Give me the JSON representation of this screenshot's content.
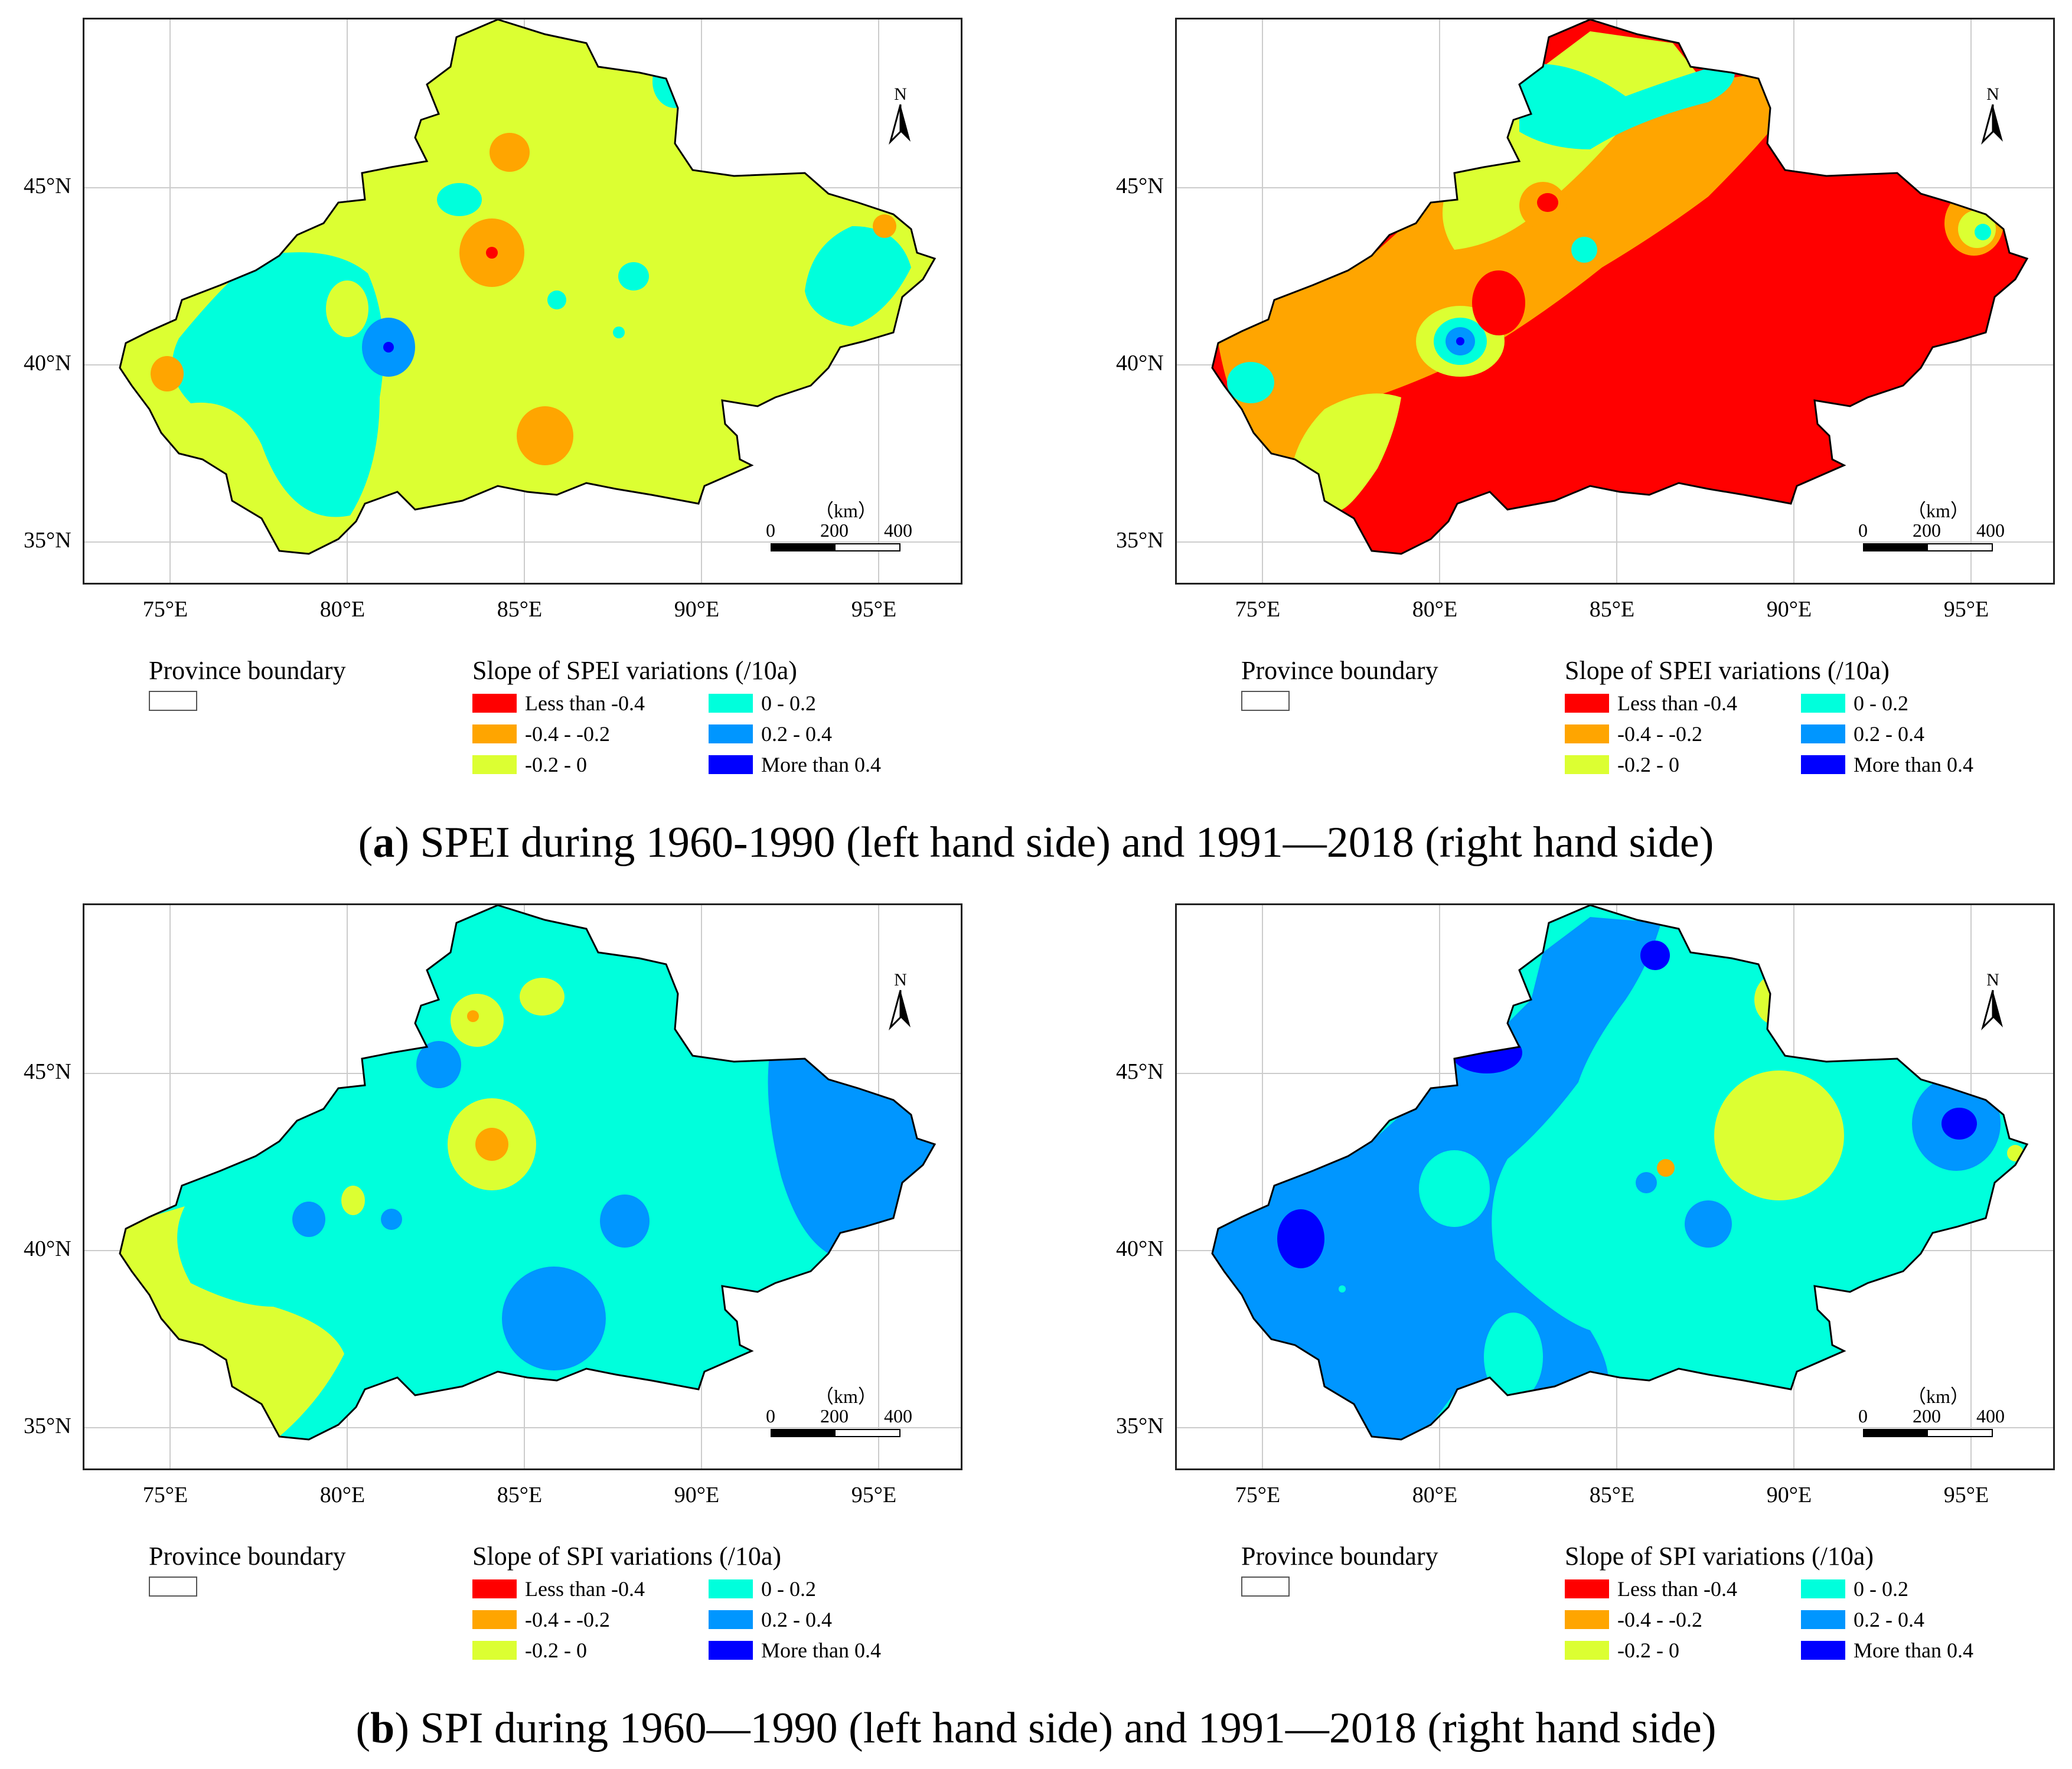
{
  "legend_classes": [
    {
      "label": "Less than -0.4",
      "color": "#ff0000"
    },
    {
      "label": "-0.4 - -0.2",
      "color": "#ffa500"
    },
    {
      "label": "-0.2 - 0",
      "color": "#dcff32"
    },
    {
      "label": "0 - 0.2",
      "color": "#00ffdc"
    },
    {
      "label": "0.2 - 0.4",
      "color": "#0096ff"
    },
    {
      "label": "More than 0.4",
      "color": "#0000ff"
    }
  ],
  "axes": {
    "x_ticks": [
      "75°E",
      "80°E",
      "85°E",
      "90°E",
      "95°E"
    ],
    "y_ticks": [
      "45°N",
      "40°N",
      "35°N"
    ]
  },
  "north_arrow": {
    "label": "N",
    "icon": "north-arrow-icon"
  },
  "scale_bar": {
    "unit": "（km）",
    "labels": [
      "0",
      "200",
      "400"
    ]
  },
  "province_boundary_label": "Province boundary",
  "panels": [
    {
      "id": "a-left",
      "legend_title": "Slope of SPEI variations (/10a)",
      "base_color": "#dcff32"
    },
    {
      "id": "a-right",
      "legend_title": "Slope of SPEI variations (/10a)",
      "base_color": "#ff0000"
    },
    {
      "id": "b-left",
      "legend_title": "Slope of SPI variations (/10a)",
      "base_color": "#00ffdc"
    },
    {
      "id": "b-right",
      "legend_title": "Slope of SPI variations (/10a)",
      "base_color": "#00ffdc"
    }
  ],
  "captions": {
    "a": {
      "letter": "a",
      "text": ") SPEI during 1960-1990 (left hand side) and 1991—2018 (right hand side)"
    },
    "b": {
      "letter": "b",
      "text": ") SPI during 1960—1990 (left hand side) and 1991—2018 (right hand side)"
    }
  }
}
